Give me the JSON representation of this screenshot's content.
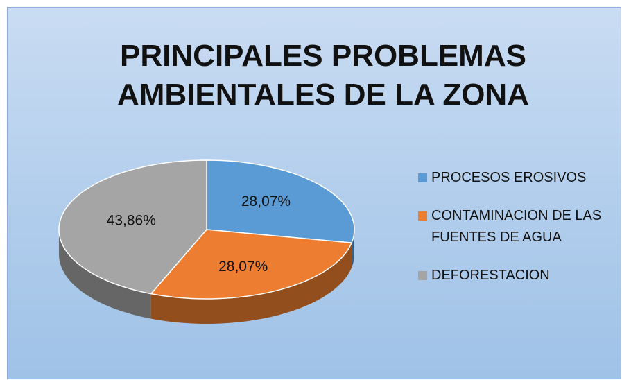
{
  "chart_data": {
    "type": "pie3d",
    "title": "PRINCIPALES PROBLEMAS AMBIENTALES DE LA ZONA",
    "categories": [
      "PROCESOS EROSIVOS",
      "CONTAMINACION DE LAS FUENTES DE AGUA",
      "DEFORESTACION"
    ],
    "values": [
      28.07,
      28.07,
      43.86
    ],
    "value_labels": [
      "28,07%",
      "28,07%",
      "43,86%"
    ],
    "colors": [
      "#5b9bd5",
      "#ed7d31",
      "#a5a5a5"
    ],
    "legend": "right"
  }
}
